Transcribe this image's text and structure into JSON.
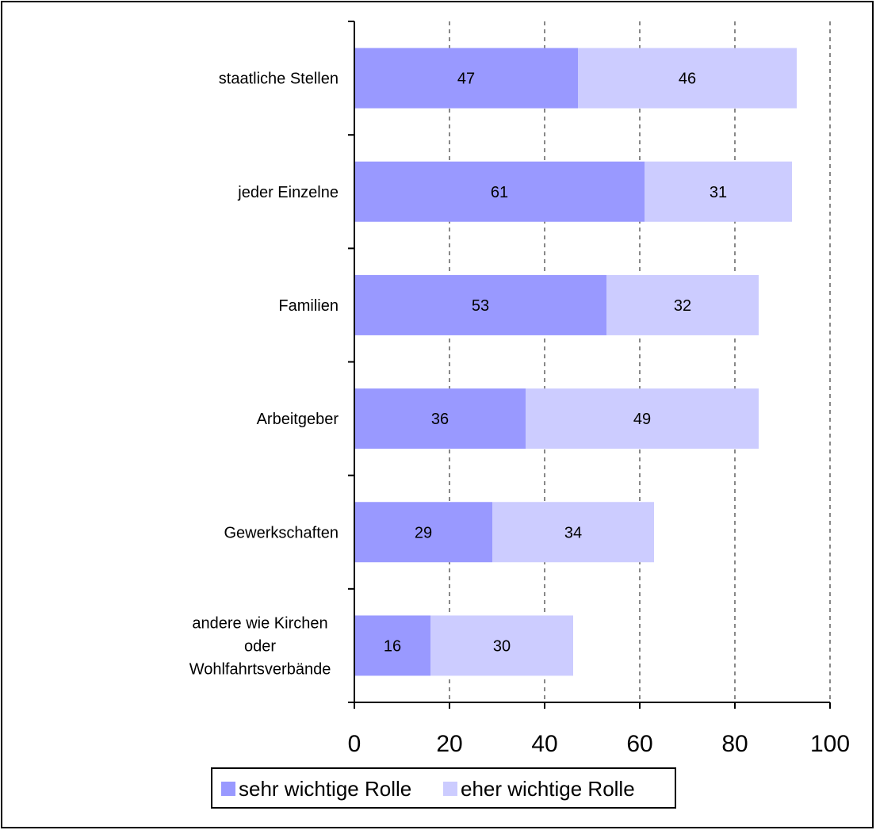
{
  "chart_data": {
    "type": "bar",
    "orientation": "horizontal",
    "stacked": true,
    "categories": [
      "staatliche Stellen",
      "jeder Einzelne",
      "Familien",
      "Arbeitgeber",
      "Gewerkschaften",
      "andere wie Kirchen\noder\nWohlfahrtsverbände"
    ],
    "series": [
      {
        "name": "sehr wichtige Rolle",
        "values": [
          47,
          61,
          53,
          36,
          29,
          16
        ],
        "color": "#9999ff"
      },
      {
        "name": "eher wichtige Rolle",
        "values": [
          46,
          31,
          32,
          49,
          34,
          30
        ],
        "color": "#ccccff"
      }
    ],
    "xlim": [
      0,
      100
    ],
    "xticks": [
      0,
      20,
      40,
      60,
      80,
      100
    ],
    "grid": "vertical dashed",
    "legend_position": "bottom",
    "title": "",
    "xlabel": "",
    "ylabel": ""
  }
}
